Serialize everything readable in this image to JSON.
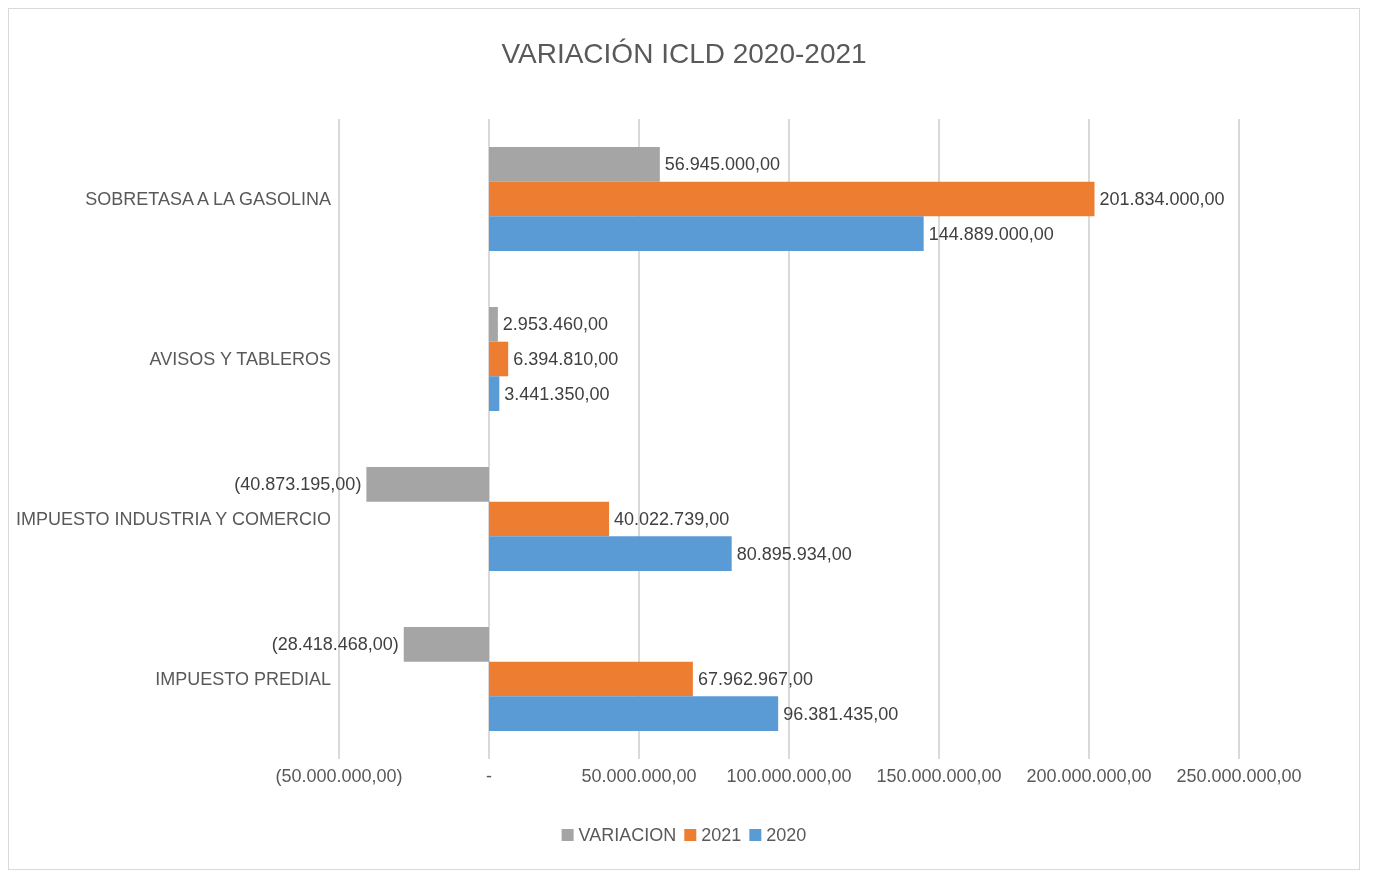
{
  "chart_data": {
    "type": "bar",
    "orientation": "horizontal",
    "title": "VARIACIÓN ICLD 2020-2021",
    "categories": [
      "SOBRETASA A LA GASOLINA",
      "AVISOS Y TABLEROS",
      "IMPUESTO INDUSTRIA Y COMERCIO",
      "IMPUESTO PREDIAL"
    ],
    "series": [
      {
        "name": "VARIACION",
        "color": "#a5a5a5",
        "values": [
          56945000,
          2953460,
          -40873195,
          -28418468
        ],
        "value_labels": [
          "56.945.000,00",
          "2.953.460,00",
          "(40.873.195,00)",
          "(28.418.468,00)"
        ]
      },
      {
        "name": "2021",
        "color": "#ed7d31",
        "values": [
          201834000,
          6394810,
          40022739,
          67962967
        ],
        "value_labels": [
          "201.834.000,00",
          "6.394.810,00",
          "40.022.739,00",
          "67.962.967,00"
        ]
      },
      {
        "name": "2020",
        "color": "#5b9bd5",
        "values": [
          144889000,
          3441350,
          80895934,
          96381435
        ],
        "value_labels": [
          "144.889.000,00",
          "3.441.350,00",
          "80.895.934,00",
          "96.381.435,00"
        ]
      }
    ],
    "xlim": [
      -50000000,
      250000000
    ],
    "xticks": [
      {
        "value": -50000000,
        "label": "(50.000.000,00)"
      },
      {
        "value": 0,
        "label": "-"
      },
      {
        "value": 50000000,
        "label": "50.000.000,00"
      },
      {
        "value": 100000000,
        "label": "100.000.000,00"
      },
      {
        "value": 150000000,
        "label": "150.000.000,00"
      },
      {
        "value": 200000000,
        "label": "200.000.000,00"
      },
      {
        "value": 250000000,
        "label": "250.000.000,00"
      }
    ],
    "grid": "x",
    "legend": "bottom"
  }
}
